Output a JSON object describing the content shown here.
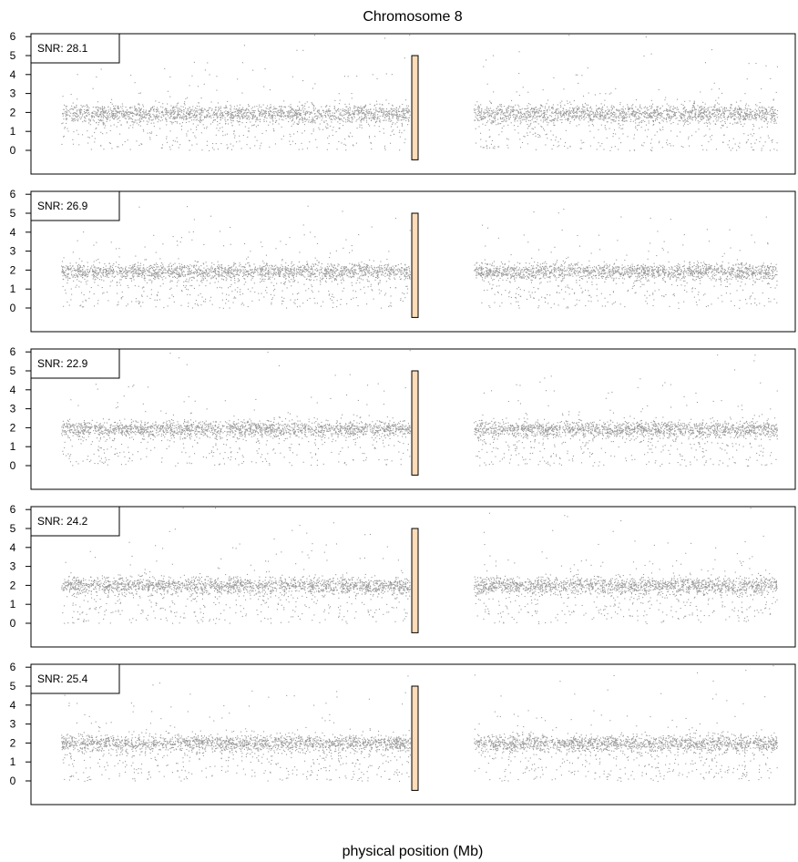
{
  "chart_data": {
    "type": "scatter",
    "title": "Chromosome 8",
    "xlabel": "physical position (Mb)",
    "ylabel": "",
    "ylim": [
      -1.2,
      6.3
    ],
    "yticks": [
      "0",
      "1",
      "2",
      "3",
      "4",
      "5",
      "6"
    ],
    "grid": false,
    "point_color": "#999999",
    "centromere": {
      "fill": "#FDDCB8",
      "y_range": [
        -0.5,
        5.0
      ]
    },
    "panels": [
      {
        "snr_label": "SNR: 28.1",
        "baseline": 1.95,
        "spread": 0.45
      },
      {
        "snr_label": "SNR: 26.9",
        "baseline": 1.95,
        "spread": 0.4
      },
      {
        "snr_label": "SNR: 22.9",
        "baseline": 1.95,
        "spread": 0.4
      },
      {
        "snr_label": "SNR: 24.2",
        "baseline": 2.0,
        "spread": 0.42
      },
      {
        "snr_label": "SNR: 25.4",
        "baseline": 2.0,
        "spread": 0.42
      }
    ]
  }
}
